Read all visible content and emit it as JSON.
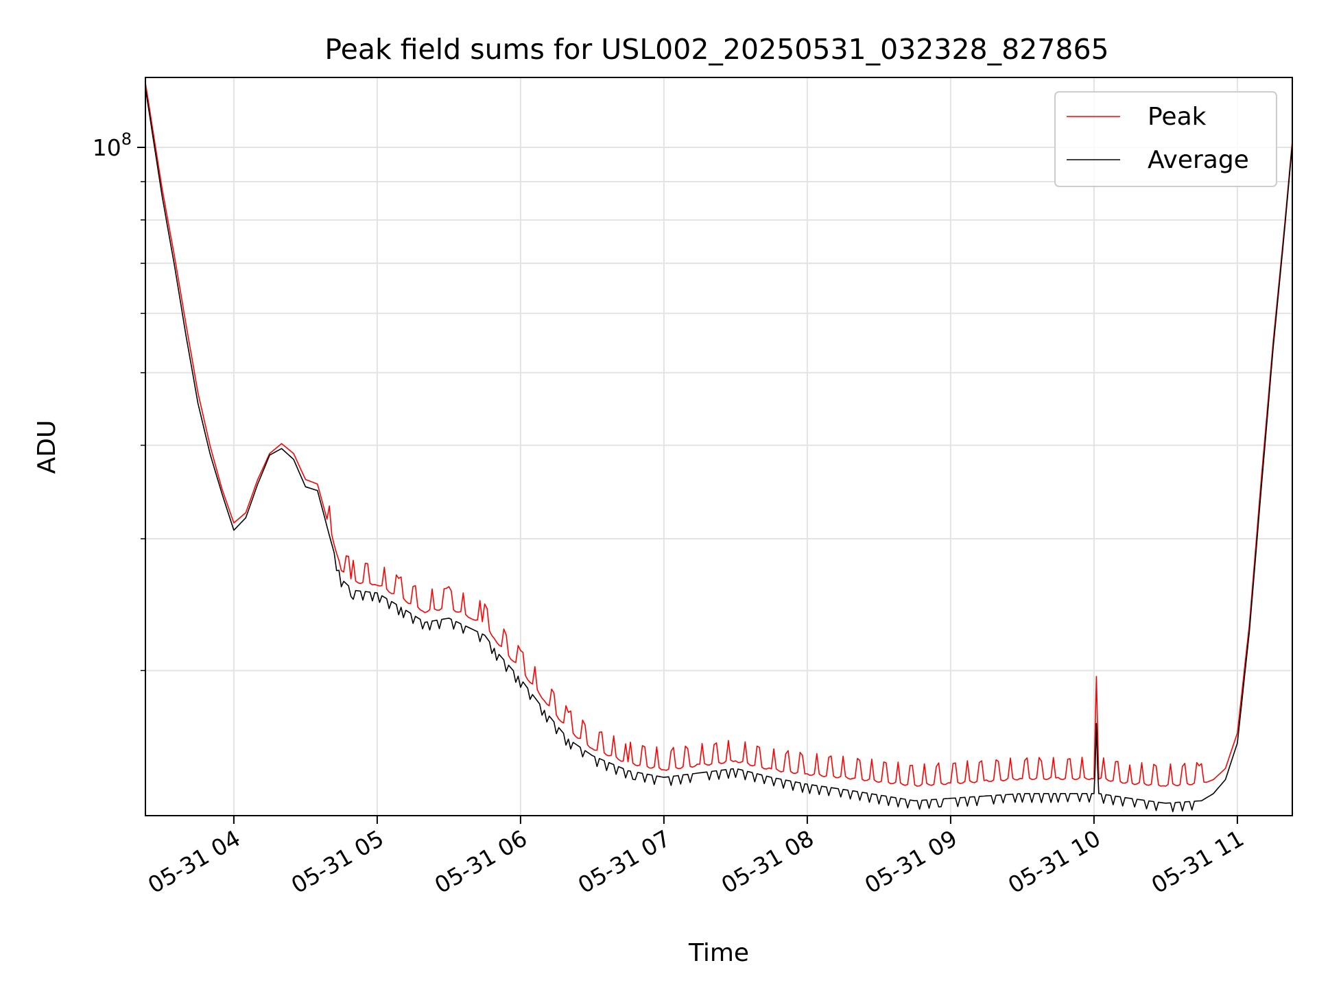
{
  "chart_data": {
    "type": "line",
    "title": "Peak field sums for USL002_20250531_032328_827865",
    "xlabel": "Time",
    "ylabel": "ADU",
    "y_scale": "log",
    "ylim": [
      12800000,
      124000000
    ],
    "xlim": [
      "2025-05-31 03:23",
      "2025-05-31 11:23"
    ],
    "grid": true,
    "legend_position": "top-right",
    "x_tick_labels": [
      "05-31 04",
      "05-31 05",
      "05-31 06",
      "05-31 07",
      "05-31 08",
      "05-31 09",
      "05-31 10",
      "05-31 11"
    ],
    "x_ticks": [
      "2025-05-31 04:00",
      "2025-05-31 05:00",
      "2025-05-31 06:00",
      "2025-05-31 07:00",
      "2025-05-31 08:00",
      "2025-05-31 09:00",
      "2025-05-31 10:00",
      "2025-05-31 11:00"
    ],
    "y_tick_labels": [
      {
        "base": "10",
        "exp": "8"
      }
    ],
    "series": [
      {
        "name": "Peak",
        "color": "#ff0000",
        "x": [
          "2025-05-31 03:23",
          "2025-05-31 03:30",
          "2025-05-31 03:35",
          "2025-05-31 03:40",
          "2025-05-31 03:45",
          "2025-05-31 03:50",
          "2025-05-31 03:55",
          "2025-05-31 04:00",
          "2025-05-31 04:05",
          "2025-05-31 04:10",
          "2025-05-31 04:15",
          "2025-05-31 04:20",
          "2025-05-31 04:25",
          "2025-05-31 04:30",
          "2025-05-31 04:35",
          "2025-05-31 04:40",
          "2025-05-31 04:45",
          "2025-05-31 04:50",
          "2025-05-31 05:00",
          "2025-05-31 05:10",
          "2025-05-31 05:20",
          "2025-05-31 05:30",
          "2025-05-31 05:40",
          "2025-05-31 05:45",
          "2025-05-31 05:50",
          "2025-05-31 06:00",
          "2025-05-31 06:10",
          "2025-05-31 06:20",
          "2025-05-31 06:30",
          "2025-05-31 06:45",
          "2025-05-31 07:00",
          "2025-05-31 07:15",
          "2025-05-31 07:30",
          "2025-05-31 07:45",
          "2025-05-31 08:00",
          "2025-05-31 08:20",
          "2025-05-31 08:45",
          "2025-05-31 09:00",
          "2025-05-31 09:15",
          "2025-05-31 09:30",
          "2025-05-31 09:45",
          "2025-05-31 10:00",
          "2025-05-31 10:01",
          "2025-05-31 10:02",
          "2025-05-31 10:15",
          "2025-05-31 10:30",
          "2025-05-31 10:45",
          "2025-05-31 10:50",
          "2025-05-31 10:55",
          "2025-05-31 11:00",
          "2025-05-31 11:05",
          "2025-05-31 11:10",
          "2025-05-31 11:15",
          "2025-05-31 11:20",
          "2025-05-31 11:23"
        ],
        "y": [
          122000000,
          88000000,
          72000000,
          58000000,
          47000000,
          40000000,
          35000000,
          31500000,
          32500000,
          36000000,
          39000000,
          40200000,
          39000000,
          36000000,
          35500000,
          31000000,
          27200000,
          26200000,
          26000000,
          24900000,
          23900000,
          24200000,
          23400000,
          23000000,
          21800000,
          20000000,
          18200000,
          16600000,
          15700000,
          15000000,
          14700000,
          14900000,
          15100000,
          14700000,
          14500000,
          14300000,
          14000000,
          14100000,
          14200000,
          14300000,
          14300000,
          14300000,
          19500000,
          14300000,
          14100000,
          14000000,
          14100000,
          14300000,
          14800000,
          16500000,
          23000000,
          36000000,
          55000000,
          80000000,
          102000000
        ]
      },
      {
        "name": "Average",
        "color": "#000000",
        "x": [
          "2025-05-31 03:23",
          "2025-05-31 03:30",
          "2025-05-31 03:35",
          "2025-05-31 03:40",
          "2025-05-31 03:45",
          "2025-05-31 03:50",
          "2025-05-31 03:55",
          "2025-05-31 04:00",
          "2025-05-31 04:05",
          "2025-05-31 04:10",
          "2025-05-31 04:15",
          "2025-05-31 04:20",
          "2025-05-31 04:25",
          "2025-05-31 04:30",
          "2025-05-31 04:35",
          "2025-05-31 04:40",
          "2025-05-31 04:45",
          "2025-05-31 04:50",
          "2025-05-31 05:00",
          "2025-05-31 05:10",
          "2025-05-31 05:20",
          "2025-05-31 05:30",
          "2025-05-31 05:40",
          "2025-05-31 05:45",
          "2025-05-31 05:50",
          "2025-05-31 06:00",
          "2025-05-31 06:10",
          "2025-05-31 06:20",
          "2025-05-31 06:30",
          "2025-05-31 06:45",
          "2025-05-31 07:00",
          "2025-05-31 07:15",
          "2025-05-31 07:30",
          "2025-05-31 07:45",
          "2025-05-31 08:00",
          "2025-05-31 08:20",
          "2025-05-31 08:45",
          "2025-05-31 09:00",
          "2025-05-31 09:15",
          "2025-05-31 09:30",
          "2025-05-31 09:45",
          "2025-05-31 10:00",
          "2025-05-31 10:01",
          "2025-05-31 10:02",
          "2025-05-31 10:15",
          "2025-05-31 10:30",
          "2025-05-31 10:45",
          "2025-05-31 10:50",
          "2025-05-31 10:55",
          "2025-05-31 11:00",
          "2025-05-31 11:05",
          "2025-05-31 11:10",
          "2025-05-31 11:15",
          "2025-05-31 11:20",
          "2025-05-31 11:23"
        ],
        "y": [
          120000000,
          86000000,
          70000000,
          56000000,
          45500000,
          39000000,
          34500000,
          30800000,
          32000000,
          35500000,
          38800000,
          39600000,
          38300000,
          35200000,
          34800000,
          30300000,
          26500000,
          25600000,
          25400000,
          24300000,
          23200000,
          23500000,
          22700000,
          22300000,
          21200000,
          19500000,
          17700000,
          16200000,
          15400000,
          14700000,
          14400000,
          14600000,
          14800000,
          14400000,
          14100000,
          13800000,
          13400000,
          13500000,
          13600000,
          13700000,
          13700000,
          13700000,
          17000000,
          13700000,
          13500000,
          13300000,
          13400000,
          13700000,
          14300000,
          16000000,
          22500000,
          35000000,
          54000000,
          79000000,
          101000000
        ]
      }
    ]
  }
}
